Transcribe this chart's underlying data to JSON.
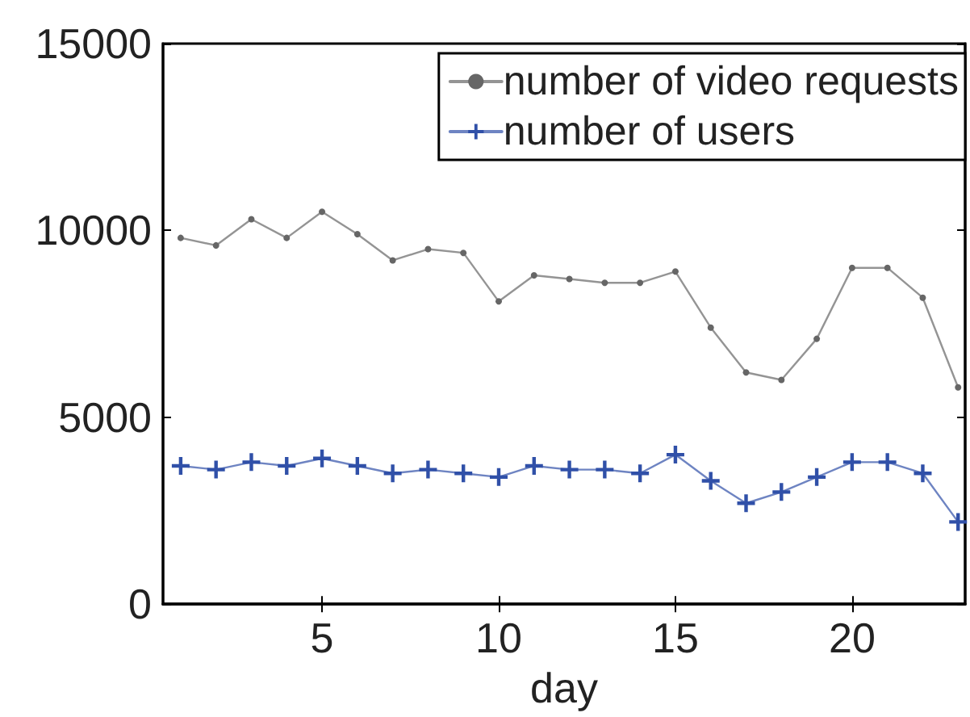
{
  "chart_data": {
    "type": "line",
    "xlabel": "day",
    "x": [
      1,
      2,
      3,
      4,
      5,
      6,
      7,
      8,
      9,
      10,
      11,
      12,
      13,
      14,
      15,
      16,
      17,
      18,
      19,
      20,
      21,
      22,
      23
    ],
    "series": [
      {
        "name": "number of video requests",
        "color": "#666666",
        "marker": "circle",
        "values": [
          9800,
          9600,
          10300,
          9800,
          10500,
          9900,
          9200,
          9500,
          9400,
          8100,
          8800,
          8700,
          8600,
          8600,
          8900,
          7400,
          6200,
          6000,
          7100,
          9000,
          9000,
          8200,
          5800
        ]
      },
      {
        "name": "number of users",
        "color": "#3050a8",
        "marker": "cross",
        "values": [
          3700,
          3600,
          3800,
          3700,
          3900,
          3700,
          3500,
          3600,
          3500,
          3400,
          3700,
          3600,
          3600,
          3500,
          4000,
          3300,
          2700,
          3000,
          3400,
          3800,
          3800,
          3500,
          2200
        ]
      }
    ],
    "xlim": [
      0.5,
      23.2
    ],
    "xticks": [
      5,
      10,
      15,
      20
    ],
    "ylim": [
      0,
      15000
    ],
    "yticks": [
      0,
      5000,
      10000,
      15000
    ],
    "legend": "top right",
    "line_style": "solid"
  }
}
